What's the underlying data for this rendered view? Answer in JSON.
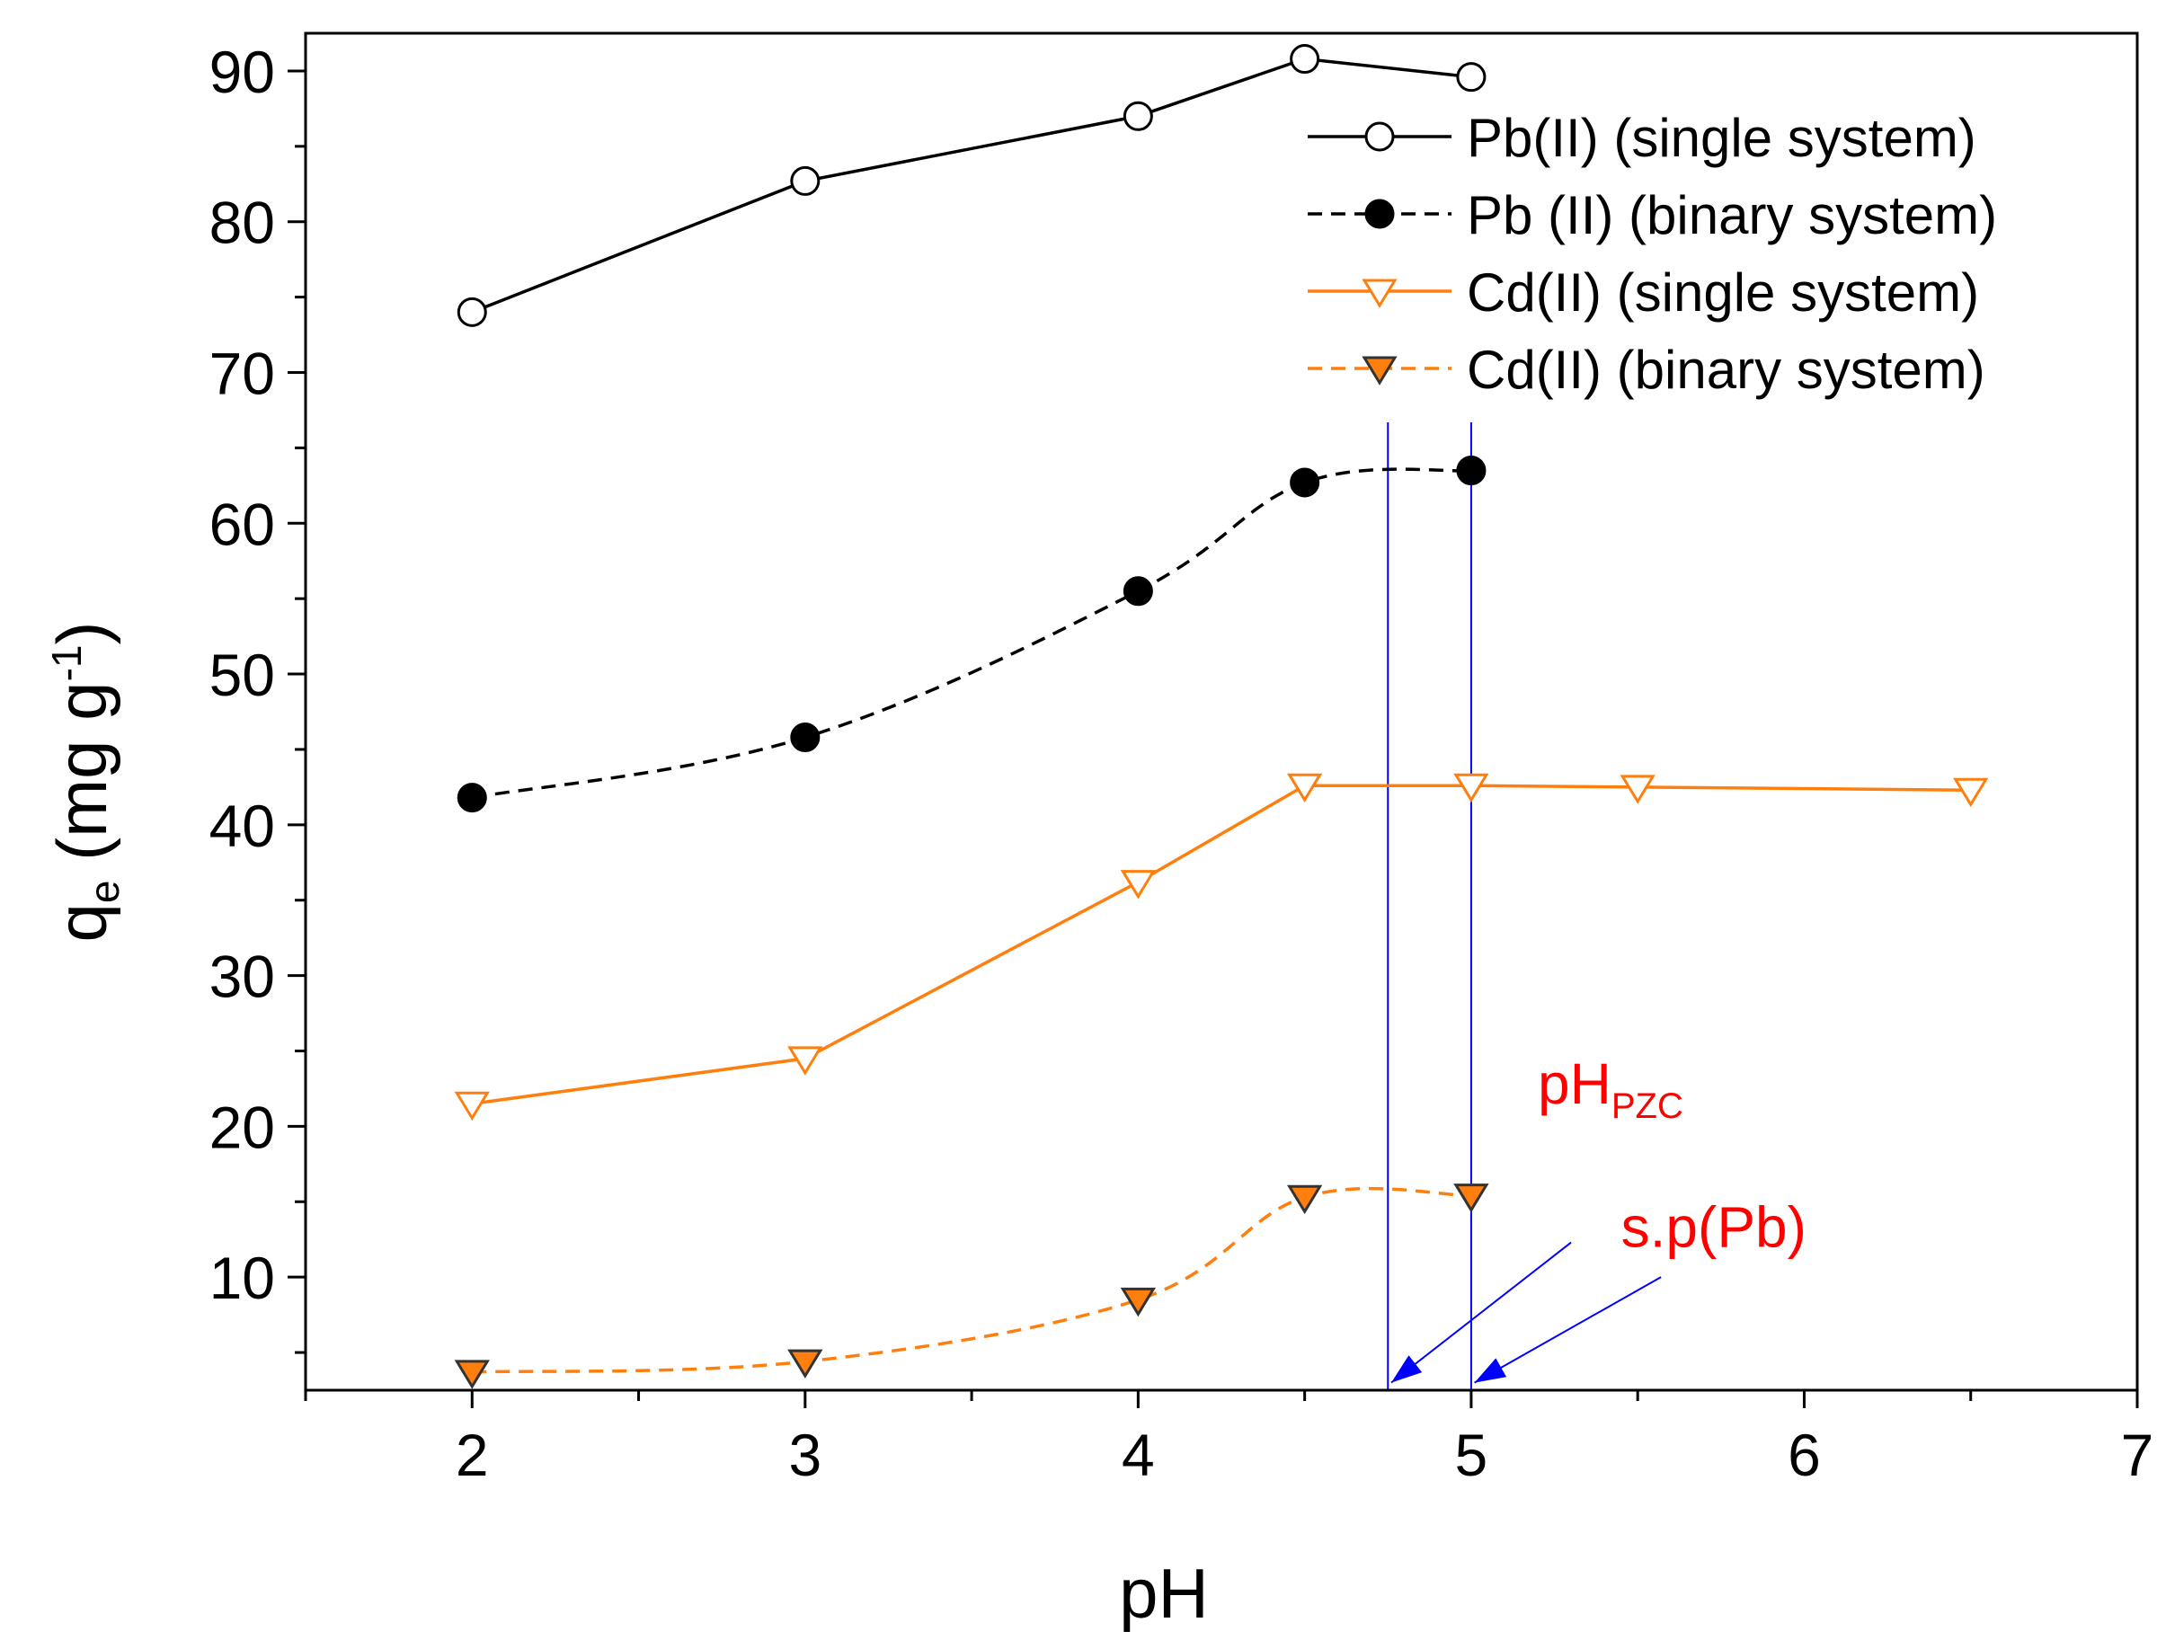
{
  "chart_data": {
    "type": "line",
    "xlabel": "pH",
    "ylabel": {
      "main": "q",
      "sub": "e",
      "units_open": " (mg g",
      "units_sup": "-1",
      "units_close": ")"
    },
    "xlim": [
      1.5,
      7
    ],
    "ylim": [
      2.5,
      92.5
    ],
    "x_ticks": [
      2,
      3,
      4,
      5,
      6,
      7
    ],
    "y_ticks": [
      10,
      20,
      30,
      40,
      50,
      60,
      70,
      80,
      90
    ],
    "grid": false,
    "legend_position": "top-right",
    "series": [
      {
        "name": "Pb(II) (single system)",
        "color": "#000000",
        "line": "solid",
        "marker": "circle-open",
        "x": [
          2,
          3,
          4,
          4.5,
          5
        ],
        "y": [
          74,
          82.7,
          87,
          90.8,
          89.6
        ]
      },
      {
        "name": "Pb (II) (binary system)",
        "color": "#000000",
        "line": "dashed",
        "marker": "circle-filled",
        "x": [
          2,
          3,
          4,
          4.5,
          5
        ],
        "y": [
          41.8,
          45.8,
          55.5,
          62.7,
          63.5
        ]
      },
      {
        "name": "Cd(II) (single system)",
        "color": "#ff7f0e",
        "line": "solid",
        "marker": "triangle-down-open",
        "x": [
          2,
          3,
          4,
          4.5,
          5,
          5.5,
          6.5
        ],
        "y": [
          21.5,
          24.5,
          36.2,
          42.6,
          42.6,
          42.5,
          42.3
        ]
      },
      {
        "name": "Cd(II) (binary system)",
        "color": "#ff7f0e",
        "line": "dashed",
        "marker": "triangle-down-filled",
        "x": [
          2,
          3,
          4,
          4.5,
          5
        ],
        "y": [
          3.7,
          4.4,
          8.5,
          15.3,
          15.4
        ]
      }
    ],
    "vertical_lines": [
      {
        "x": 4.75,
        "color": "#0000ff"
      },
      {
        "x": 5.0,
        "color": "#0000ff"
      }
    ],
    "annotations": [
      {
        "name": "ph-pzc",
        "text_main": "pH",
        "text_sub": "PZC",
        "color": "#ff0000",
        "x": 5.2,
        "y": 21.5,
        "arrow_from": [
          5.3,
          12.3
        ],
        "arrow_to": [
          4.76,
          3.0
        ]
      },
      {
        "name": "sp-pb",
        "text_main": "s.p(Pb)",
        "text_sub": "",
        "color": "#ff0000",
        "x": 5.45,
        "y": 12.0,
        "arrow_from": [
          5.57,
          10.0
        ],
        "arrow_to": [
          5.01,
          3.0
        ]
      }
    ]
  }
}
